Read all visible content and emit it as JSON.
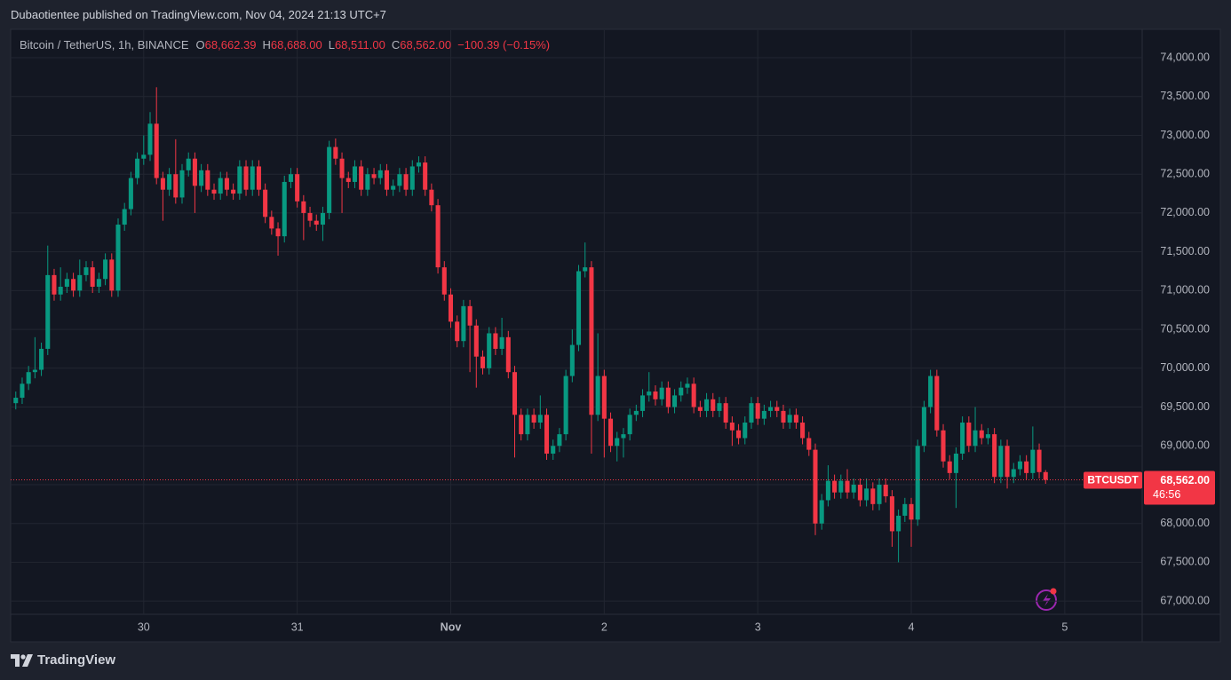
{
  "header": {
    "author_line": "Dubaotientee published on TradingView.com, Nov 04, 2024 21:13 UTC+7"
  },
  "chart_data": {
    "type": "candlestick",
    "symbol_line": "Bitcoin / TetherUS, 1h, BINANCE",
    "ohlc_legend": [
      {
        "label": "O",
        "value": "68,662.39"
      },
      {
        "label": "H",
        "value": "68,688.00"
      },
      {
        "label": "L",
        "value": "68,511.00"
      },
      {
        "label": "C",
        "value": "68,562.00"
      }
    ],
    "change": "−100.39 (−0.15%)",
    "x": [
      4,
      5,
      6,
      7,
      8,
      9,
      10,
      11,
      12,
      13,
      14,
      15,
      16,
      17,
      18,
      19,
      20,
      21,
      22,
      23,
      24,
      25,
      26,
      27,
      28,
      29,
      30,
      31,
      32,
      33,
      34,
      35,
      36,
      37,
      38,
      39,
      40,
      41,
      42,
      43,
      44,
      45,
      46,
      47,
      48,
      49,
      50,
      51,
      52,
      53,
      54,
      55,
      56,
      57,
      58,
      59,
      60,
      61,
      62,
      63,
      64,
      65,
      66,
      67,
      68,
      69,
      70,
      71,
      72,
      73,
      74,
      75,
      76,
      77,
      78,
      79,
      80,
      81,
      82,
      83,
      84,
      85,
      86,
      87,
      88,
      89,
      90,
      91,
      92,
      93,
      94,
      95,
      96,
      97,
      98,
      99,
      100,
      101,
      102,
      103,
      104,
      105,
      106,
      107,
      108,
      109,
      110,
      111,
      112,
      113,
      114,
      115,
      116,
      117,
      118,
      119,
      120,
      121,
      122,
      123,
      124,
      125,
      126,
      127,
      128,
      129,
      130,
      131,
      132,
      133,
      134,
      135,
      136,
      137,
      138,
      139,
      140,
      141,
      142,
      143,
      144,
      145,
      146,
      147,
      148,
      149,
      150,
      151,
      152,
      153,
      154,
      155,
      156,
      157,
      158,
      159,
      160,
      161,
      162,
      163,
      164,
      165
    ],
    "open": [
      69550,
      69620,
      69800,
      69950,
      69980,
      70250,
      71200,
      70950,
      71050,
      71150,
      71000,
      71200,
      71300,
      71050,
      71150,
      71400,
      71000,
      71850,
      72050,
      72450,
      72700,
      72750,
      73150,
      72450,
      72300,
      72500,
      72200,
      72550,
      72700,
      72350,
      72550,
      72300,
      72250,
      72450,
      72300,
      72250,
      72600,
      72300,
      72600,
      72300,
      71950,
      71800,
      71700,
      72400,
      72500,
      72150,
      72000,
      71900,
      71850,
      72000,
      72850,
      72700,
      72450,
      72400,
      72600,
      72300,
      72500,
      72450,
      72550,
      72300,
      72350,
      72500,
      72300,
      72600,
      72650,
      72300,
      72100,
      71300,
      70950,
      70600,
      70350,
      70800,
      70550,
      70150,
      70000,
      70450,
      70250,
      70400,
      69950,
      69400,
      69150,
      69400,
      69300,
      69400,
      68900,
      69000,
      69150,
      69900,
      70300,
      71250,
      71300,
      69400,
      69900,
      69350,
      69000,
      69100,
      69150,
      69400,
      69450,
      69650,
      69700,
      69600,
      69750,
      69500,
      69650,
      69750,
      69800,
      69500,
      69450,
      69600,
      69450,
      69550,
      69300,
      69200,
      69100,
      69300,
      69550,
      69350,
      69450,
      69500,
      69450,
      69300,
      69400,
      69300,
      69100,
      68950,
      68000,
      68300,
      68550,
      68400,
      68550,
      68400,
      68500,
      68300,
      68450,
      68250,
      68500,
      68350,
      67900,
      68100,
      68250,
      68050,
      69000,
      69500,
      69900,
      69200,
      68800,
      68650,
      68900,
      69300,
      69000,
      69200,
      69100,
      69150,
      68600,
      69000,
      68600,
      68700,
      68800,
      68650,
      68950,
      68662
    ],
    "high": [
      69700,
      69880,
      70030,
      70400,
      70330,
      71580,
      71280,
      71300,
      71230,
      71230,
      71400,
      71380,
      71380,
      71230,
      71480,
      71480,
      71930,
      72130,
      72530,
      72780,
      73000,
      73300,
      73620,
      72530,
      72580,
      72950,
      72630,
      72780,
      72780,
      72630,
      72630,
      72380,
      72530,
      72530,
      72380,
      72680,
      72680,
      72680,
      72680,
      72380,
      72030,
      71880,
      72480,
      72580,
      72580,
      72230,
      72080,
      71980,
      72080,
      72930,
      72960,
      72780,
      72530,
      72680,
      72680,
      72580,
      72580,
      72630,
      72630,
      72430,
      72580,
      72580,
      72680,
      72730,
      72730,
      72380,
      72180,
      71380,
      71030,
      70680,
      70880,
      70880,
      70630,
      70230,
      70530,
      70530,
      70650,
      70480,
      70030,
      69480,
      69480,
      69480,
      69650,
      69480,
      69080,
      69230,
      69980,
      70500,
      71330,
      71620,
      71380,
      70450,
      69980,
      69430,
      69180,
      69230,
      69480,
      69530,
      69730,
      69950,
      69780,
      69830,
      69830,
      69730,
      69830,
      69880,
      69880,
      69580,
      69680,
      69680,
      69630,
      69630,
      69380,
      69280,
      69380,
      69630,
      69630,
      69530,
      69580,
      69580,
      69530,
      69480,
      69480,
      69380,
      69180,
      69030,
      68380,
      68750,
      68630,
      68630,
      68700,
      68580,
      68580,
      68580,
      68530,
      68580,
      68580,
      68430,
      68180,
      68330,
      68330,
      69080,
      69580,
      69980,
      69980,
      69280,
      68880,
      68980,
      69380,
      69380,
      69500,
      69280,
      69230,
      69230,
      69080,
      69080,
      68780,
      68880,
      68880,
      69250,
      69030,
      68688
    ],
    "low": [
      69470,
      69540,
      69720,
      69870,
      69900,
      70170,
      70870,
      70870,
      70970,
      70920,
      70920,
      71120,
      70970,
      70970,
      71070,
      70920,
      70920,
      71770,
      71970,
      72370,
      72620,
      72670,
      72370,
      71900,
      72220,
      72120,
      72120,
      72470,
      72000,
      72270,
      72220,
      72170,
      72170,
      72220,
      72170,
      72170,
      72220,
      72220,
      72220,
      71870,
      71720,
      71450,
      71620,
      72320,
      72070,
      71650,
      71820,
      71770,
      71640,
      71920,
      72620,
      72000,
      72320,
      72320,
      72220,
      72220,
      72370,
      72370,
      72220,
      72220,
      72270,
      72220,
      72220,
      72520,
      72220,
      72020,
      71220,
      70870,
      70520,
      70270,
      70270,
      69950,
      69750,
      69920,
      69920,
      70170,
      70170,
      69870,
      68850,
      69070,
      69070,
      69220,
      69220,
      68820,
      68820,
      68920,
      69070,
      69820,
      70220,
      71170,
      68900,
      69320,
      68850,
      68920,
      68800,
      68850,
      69070,
      69320,
      69370,
      69570,
      69520,
      69520,
      69420,
      69420,
      69570,
      69670,
      69420,
      69370,
      69370,
      69370,
      69370,
      69220,
      69000,
      69020,
      69020,
      69220,
      69270,
      69270,
      69370,
      69370,
      69220,
      69220,
      69220,
      69020,
      68870,
      67850,
      67920,
      68220,
      68320,
      68320,
      68320,
      68320,
      68220,
      68220,
      68170,
      68170,
      68270,
      67700,
      67500,
      68020,
      67700,
      67970,
      68920,
      69420,
      69120,
      68720,
      68570,
      68200,
      68820,
      68920,
      68920,
      69020,
      69020,
      68520,
      68520,
      68450,
      68520,
      68620,
      68570,
      68570,
      68580,
      68511
    ],
    "close": [
      69620,
      69800,
      69950,
      69980,
      70250,
      71200,
      70950,
      71050,
      71150,
      71000,
      71200,
      71300,
      71050,
      71150,
      71400,
      71000,
      71850,
      72050,
      72450,
      72700,
      72750,
      73150,
      72450,
      72300,
      72500,
      72200,
      72550,
      72700,
      72350,
      72550,
      72300,
      72250,
      72450,
      72300,
      72250,
      72600,
      72300,
      72600,
      72300,
      71950,
      71800,
      71700,
      72400,
      72500,
      72150,
      72000,
      71900,
      71850,
      72000,
      72850,
      72700,
      72450,
      72400,
      72600,
      72300,
      72500,
      72450,
      72550,
      72300,
      72350,
      72500,
      72300,
      72600,
      72650,
      72300,
      72100,
      71300,
      70950,
      70600,
      70350,
      70800,
      70550,
      70150,
      70000,
      70450,
      70250,
      70400,
      69950,
      69400,
      69150,
      69400,
      69300,
      69400,
      68900,
      69000,
      69150,
      69900,
      70300,
      71250,
      71300,
      69400,
      69900,
      69350,
      69000,
      69100,
      69150,
      69400,
      69450,
      69650,
      69700,
      69600,
      69750,
      69500,
      69650,
      69750,
      69800,
      69500,
      69450,
      69600,
      69450,
      69550,
      69300,
      69200,
      69100,
      69300,
      69550,
      69350,
      69450,
      69500,
      69450,
      69300,
      69400,
      69300,
      69100,
      68950,
      68000,
      68300,
      68550,
      68400,
      68550,
      68400,
      68500,
      68300,
      68450,
      68250,
      68500,
      68350,
      67900,
      68100,
      68250,
      68050,
      69000,
      69500,
      69900,
      69200,
      68800,
      68650,
      68900,
      69300,
      69000,
      69200,
      69100,
      69150,
      68600,
      69000,
      68600,
      68700,
      68800,
      68650,
      68950,
      68662,
      68562
    ],
    "up_color": "#089981",
    "down_color": "#f23645",
    "xlim": [
      3.2,
      180.1
    ],
    "xticks": [
      {
        "value": 24,
        "label": "30"
      },
      {
        "value": 48,
        "label": "31"
      },
      {
        "value": 72,
        "label": "Nov"
      },
      {
        "value": 96,
        "label": "2"
      },
      {
        "value": 120,
        "label": "3"
      },
      {
        "value": 144,
        "label": "4"
      },
      {
        "value": 168,
        "label": "5"
      }
    ],
    "ylim": [
      66830,
      74355
    ],
    "yticks": [
      {
        "value": 67000,
        "label": "67,000.00"
      },
      {
        "value": 67500,
        "label": "67,500.00"
      },
      {
        "value": 68000,
        "label": "68,000.00"
      },
      {
        "value": 68500,
        "label": "68,500.00"
      },
      {
        "value": 69000,
        "label": "69,000.00"
      },
      {
        "value": 69500,
        "label": "69,500.00"
      },
      {
        "value": 70000,
        "label": "70,000.00"
      },
      {
        "value": 70500,
        "label": "70,500.00"
      },
      {
        "value": 71000,
        "label": "71,000.00"
      },
      {
        "value": 71500,
        "label": "71,500.00"
      },
      {
        "value": 72000,
        "label": "72,000.00"
      },
      {
        "value": 72500,
        "label": "72,500.00"
      },
      {
        "value": 73000,
        "label": "73,000.00"
      },
      {
        "value": 73500,
        "label": "73,500.00"
      },
      {
        "value": 74000,
        "label": "74,000.00"
      }
    ],
    "grid": true,
    "last_price": {
      "value": 68562,
      "label": "68,562.00",
      "symbol": "BTCUSDT",
      "countdown": "46:56"
    }
  },
  "footer": {
    "brand": "TradingView"
  }
}
